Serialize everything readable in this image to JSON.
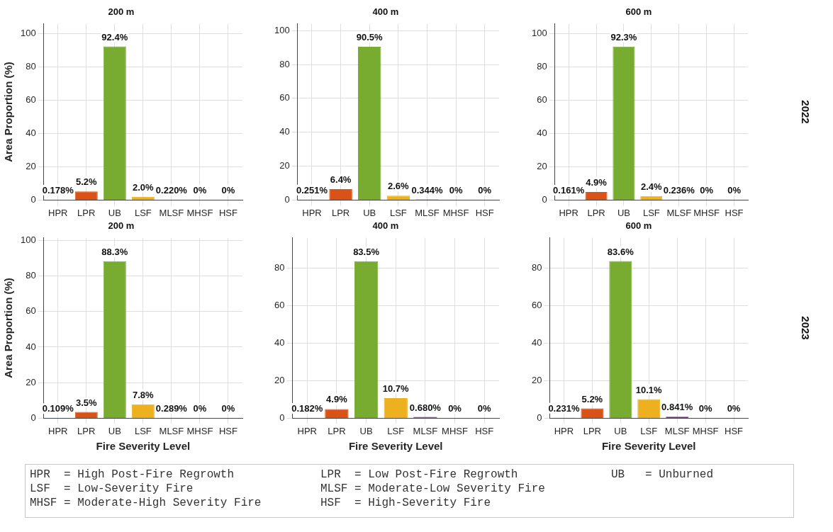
{
  "chart_data": [
    {
      "type": "bar",
      "title": "200 m",
      "ylabel": "Area Proportion (%)",
      "categories": [
        "HPR",
        "LPR",
        "UB",
        "LSF",
        "MLSF",
        "MHSF",
        "HSF"
      ],
      "values": [
        0.178,
        5.2,
        92.4,
        2.0,
        0.22,
        0,
        0
      ],
      "value_labels": [
        "0.178%",
        "5.2%",
        "92.4%",
        "2.0%",
        "0.220%",
        "0%",
        "0%"
      ],
      "colors": [
        "#0072bd",
        "#d95319",
        "#77ac30",
        "#edb120",
        "#7e2f8e",
        "#e8e89a",
        "#a0a0a0"
      ],
      "ylim": [
        0,
        106
      ],
      "yticks": [
        0,
        20,
        40,
        60,
        80,
        100
      ],
      "grid": true,
      "legend": false
    },
    {
      "type": "bar",
      "title": "400 m",
      "categories": [
        "HPR",
        "LPR",
        "UB",
        "LSF",
        "MLSF",
        "MHSF",
        "HSF"
      ],
      "values": [
        0.251,
        6.4,
        90.5,
        2.6,
        0.344,
        0,
        0
      ],
      "value_labels": [
        "0.251%",
        "6.4%",
        "90.5%",
        "2.6%",
        "0.344%",
        "0%",
        "0%"
      ],
      "colors": [
        "#0072bd",
        "#d95319",
        "#77ac30",
        "#edb120",
        "#7e2f8e",
        "#e8e89a",
        "#a0a0a0"
      ],
      "ylim": [
        0,
        104
      ],
      "yticks": [
        0,
        20,
        40,
        60,
        80,
        100
      ],
      "grid": true,
      "legend": false
    },
    {
      "type": "bar",
      "title": "600 m",
      "categories": [
        "HPR",
        "LPR",
        "UB",
        "LSF",
        "MLSF",
        "MHSF",
        "HSF"
      ],
      "values": [
        0.161,
        4.9,
        92.3,
        2.4,
        0.236,
        0,
        0
      ],
      "value_labels": [
        "0.161%",
        "4.9%",
        "92.3%",
        "2.4%",
        "0.236%",
        "0%",
        "0%"
      ],
      "colors": [
        "#0072bd",
        "#d95319",
        "#77ac30",
        "#edb120",
        "#7e2f8e",
        "#e8e89a",
        "#a0a0a0"
      ],
      "ylim": [
        0,
        106
      ],
      "yticks": [
        0,
        20,
        40,
        60,
        80,
        100
      ],
      "grid": true,
      "legend": false,
      "annotations": [
        "2022"
      ]
    },
    {
      "type": "bar",
      "title": "200 m",
      "xlabel": "Fire Severity Level",
      "ylabel": "Area Proportion (%)",
      "categories": [
        "HPR",
        "LPR",
        "UB",
        "LSF",
        "MLSF",
        "MHSF",
        "HSF"
      ],
      "values": [
        0.109,
        3.5,
        88.3,
        7.8,
        0.289,
        0,
        0
      ],
      "value_labels": [
        "0.109%",
        "3.5%",
        "88.3%",
        "7.8%",
        "0.289%",
        "0%",
        "0%"
      ],
      "colors": [
        "#0072bd",
        "#d95319",
        "#77ac30",
        "#edb120",
        "#7e2f8e",
        "#e8e89a",
        "#a0a0a0"
      ],
      "ylim": [
        0,
        101.5
      ],
      "yticks": [
        0,
        20,
        40,
        60,
        80,
        100
      ],
      "grid": true,
      "legend": false
    },
    {
      "type": "bar",
      "title": "400 m",
      "xlabel": "Fire Severity Level",
      "categories": [
        "HPR",
        "LPR",
        "UB",
        "LSF",
        "MLSF",
        "MHSF",
        "HSF"
      ],
      "values": [
        0.182,
        4.9,
        83.5,
        10.7,
        0.68,
        0,
        0
      ],
      "value_labels": [
        "0.182%",
        "4.9%",
        "83.5%",
        "10.7%",
        "0.680%",
        "0%",
        "0%"
      ],
      "colors": [
        "#0072bd",
        "#d95319",
        "#77ac30",
        "#edb120",
        "#7e2f8e",
        "#e8e89a",
        "#a0a0a0"
      ],
      "ylim": [
        0,
        96
      ],
      "yticks": [
        0,
        20,
        40,
        60,
        80
      ],
      "grid": true,
      "legend": false
    },
    {
      "type": "bar",
      "title": "600 m",
      "xlabel": "Fire Severity Level",
      "categories": [
        "HPR",
        "LPR",
        "UB",
        "LSF",
        "MLSF",
        "MHSF",
        "HSF"
      ],
      "values": [
        0.231,
        5.2,
        83.6,
        10.1,
        0.841,
        0,
        0
      ],
      "value_labels": [
        "0.231%",
        "5.2%",
        "83.6%",
        "10.1%",
        "0.841%",
        "0%",
        "0%"
      ],
      "colors": [
        "#0072bd",
        "#d95319",
        "#77ac30",
        "#edb120",
        "#7e2f8e",
        "#e8e89a",
        "#a0a0a0"
      ],
      "ylim": [
        0,
        96
      ],
      "yticks": [
        0,
        20,
        40,
        60,
        80
      ],
      "grid": true,
      "legend": false,
      "annotations": [
        "2023"
      ]
    },
    {
      "type": "other",
      "annotations": [
        "HPR  = High Post-Fire Regrowth",
        "LSF  = Low-Severity Fire",
        "MHSF = Moderate-High Severity Fire",
        "LPR  = Low Post-Fire Regrowth",
        "MLSF = Moderate-Low Severity Fire",
        "HSF  = High-Severity Fire",
        "UB   = Unburned"
      ]
    }
  ]
}
